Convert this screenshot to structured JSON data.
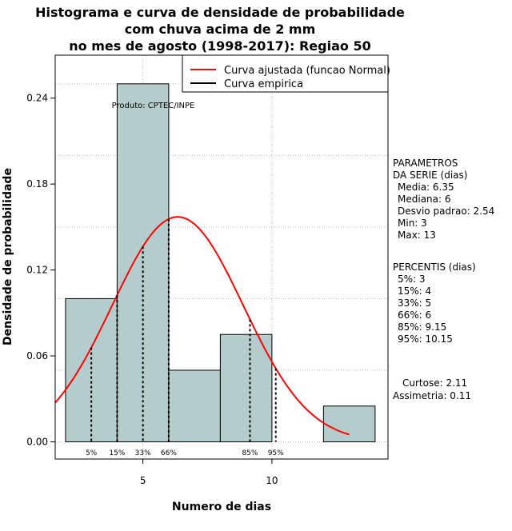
{
  "chart_data": {
    "type": "bar",
    "title_lines": [
      "Histograma e curva de densidade de probabilidade",
      "com chuva acima de 2 mm",
      "no mes de agosto (1998-2017): Regiao 50"
    ],
    "xlabel": "Numero de dias",
    "ylabel": "Densidade de probabilidade",
    "xlim": [
      1.6,
      14.5
    ],
    "ylim": [
      -0.012,
      0.27
    ],
    "x_ticks": [
      5,
      10
    ],
    "y_ticks": [
      0.0,
      0.06,
      0.12,
      0.18,
      0.24
    ],
    "y_tick_labels": [
      "0.00",
      "0.06",
      "0.12",
      "0.18",
      "0.24"
    ],
    "bars": [
      {
        "x0": 2,
        "x1": 4,
        "density": 0.1
      },
      {
        "x0": 4,
        "x1": 6,
        "density": 0.25
      },
      {
        "x0": 6,
        "x1": 8,
        "density": 0.05
      },
      {
        "x0": 8,
        "x1": 10,
        "density": 0.075
      },
      {
        "x0": 12,
        "x1": 14,
        "density": 0.025
      }
    ],
    "bar_fill": "#b4cccc",
    "grid": true,
    "series": [
      {
        "name": "Curva ajustada (funcao Normal)",
        "color": "#ff0000",
        "distribution": "normal",
        "mean": 6.35,
        "sd": 2.54,
        "x_range": [
          1.6,
          13.0
        ]
      },
      {
        "name": "Curva empirica",
        "color": "#000000"
      }
    ],
    "legend_position": "top-right",
    "percentile_markers": [
      {
        "label": "5%",
        "x": 3
      },
      {
        "label": "15%",
        "x": 4
      },
      {
        "label": "33%",
        "x": 5
      },
      {
        "label": "66%",
        "x": 6
      },
      {
        "label": "85%",
        "x": 9.15
      },
      {
        "label": "95%",
        "x": 10.15
      }
    ],
    "annotation": "Produto: CPTEC/INPE",
    "side_panel": {
      "params_title": [
        "PARAMETROS",
        "DA SERIE (dias)"
      ],
      "params": [
        "Media: 6.35",
        "Mediana: 6",
        "Desvio padrao: 2.54",
        "Min: 3",
        "Max: 13"
      ],
      "percentis_title": "PERCENTIS (dias)",
      "percentis": [
        "5%: 3",
        "15%: 4",
        "33%: 5",
        "66%: 6",
        "85%: 9.15",
        "95%: 10.15"
      ],
      "stats": [
        "Curtose: 2.11",
        "Assimetria: 0.11"
      ]
    }
  }
}
